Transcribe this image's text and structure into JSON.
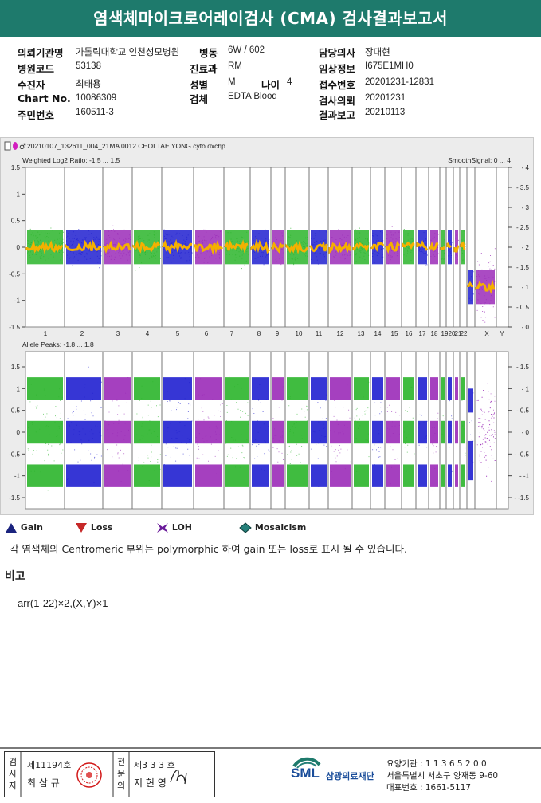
{
  "title": "염색체마이크로어레이검사 (CMA) 검사결과보고서",
  "info": {
    "institution": {
      "label": "의뢰기관명",
      "value": "가톨릭대학교 인천성모병원"
    },
    "hospital_code": {
      "label": "병원코드",
      "value": "53138"
    },
    "recipient": {
      "label": "수진자",
      "value": "최태용"
    },
    "chart_no": {
      "label": "Chart No.",
      "value": "10086309"
    },
    "resident_no": {
      "label": "주민번호",
      "value": "160511-3"
    },
    "ward": {
      "label": "병동",
      "value": "6W / 602"
    },
    "department": {
      "label": "진료과",
      "value": "RM"
    },
    "sex": {
      "label": "성별",
      "value": "M"
    },
    "age": {
      "label": "나이",
      "value": "4"
    },
    "specimen": {
      "label": "검체",
      "value": "EDTA Blood"
    },
    "doctor": {
      "label": "담당의사",
      "value": "장대현"
    },
    "clinical_info": {
      "label": "임상정보",
      "value": "I675E1MH0"
    },
    "receipt_no": {
      "label": "접수번호",
      "value": "20201231-12831"
    },
    "request_date": {
      "label": "검사의뢰",
      "value": "20201231"
    },
    "report_date": {
      "label": "결과보고",
      "value": "20210113"
    }
  },
  "plot": {
    "filename": "20210107_132611_004_21MA 0012 CHOI TAE YONG.cyto.dxchp",
    "top_label": "Weighted Log2 Ratio: -1.5 ... 1.5",
    "top_right_label": "SmoothSignal: 0 ... 4",
    "bottom_label": "Allele Peaks: -1.8 ... 1.8",
    "top_left_ticks": [
      "1.5",
      "1",
      "0.5",
      "0",
      "-0.5",
      "-1",
      "-1.5"
    ],
    "top_right_ticks": [
      "4",
      "3.5",
      "3",
      "2.5",
      "2",
      "1.5",
      "1",
      "0.5",
      "0"
    ],
    "bottom_ticks": [
      "1.5",
      "1",
      "0.5",
      "0",
      "-0.5",
      "-1",
      "-1.5"
    ],
    "chromosomes": [
      "1",
      "2",
      "3",
      "4",
      "5",
      "6",
      "7",
      "8",
      "9",
      "10",
      "11",
      "12",
      "13",
      "14",
      "15",
      "16",
      "17",
      "18",
      "19",
      "20",
      "21",
      "22",
      "X",
      "Y"
    ]
  },
  "legend": {
    "gain": "Gain",
    "loss": "Loss",
    "loh": "LOH",
    "mosaicism": "Mosaicism"
  },
  "note": "각 염색체의 Centromeric 부위는 polymorphic 하여 gain 또는 loss로 표시 될 수 있습니다.",
  "remarks_title": "비고",
  "karyotype": "arr(1-22)×2,(X,Y)×1",
  "signatures": {
    "inspector_label": "검사자",
    "inspector_license": "제11194호",
    "inspector_name": "최 삼 규",
    "specialist_label": "전문의",
    "specialist_license": "제3 3 3 호",
    "specialist_name": "지 현 영"
  },
  "footer": {
    "org_logo_text": "SML",
    "org_name": "삼광의료재단",
    "care_institution": "요양기관 : 1 1 3 6 5 2 0 0",
    "address": "서울특별시 서초구 양재동 9-60",
    "phone": "대표번호 : 1661-5117"
  },
  "colors": {
    "title_bg": "#1e7a6c",
    "green": "#2bb52b",
    "blue": "#2020d0",
    "purple": "#9b2bb8",
    "orange": "#f5b000",
    "gain": "#1a237e",
    "loss": "#c62828",
    "loh": "#6a1b9a",
    "mosaicism": "#26807a"
  }
}
